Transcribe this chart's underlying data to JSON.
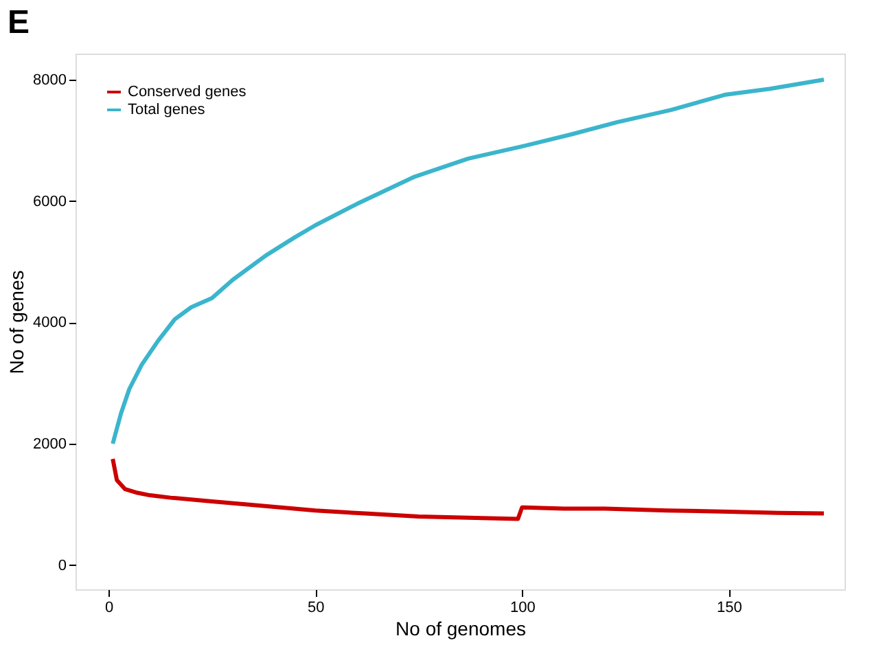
{
  "chart_data": {
    "type": "line",
    "title": "E",
    "xlabel": "No of genomes",
    "ylabel": "No  of genes",
    "xlim": [
      -8,
      178
    ],
    "xticks": [
      0,
      50,
      100,
      150
    ],
    "ylim": [
      -400,
      8430
    ],
    "yticks": [
      0,
      2000,
      4000,
      6000,
      8000
    ],
    "grid": false,
    "legend": "top left",
    "marker": "none",
    "line_style": "solid",
    "series": [
      {
        "name": "Conserved genes",
        "color": "#cc0000",
        "x": [
          1,
          2,
          4,
          7,
          10,
          15,
          25,
          35,
          50,
          62,
          75,
          87,
          99,
          100,
          110,
          120,
          135,
          150,
          162,
          173
        ],
        "values": [
          1750,
          1400,
          1250,
          1190,
          1150,
          1110,
          1050,
          990,
          900,
          850,
          800,
          780,
          760,
          950,
          930,
          930,
          900,
          880,
          860,
          850
        ]
      },
      {
        "name": "Total genes",
        "color": "#3bb5cc",
        "x": [
          1,
          3,
          5,
          8,
          12,
          16,
          20,
          25,
          30,
          38,
          45,
          50,
          60,
          74,
          87,
          100,
          112,
          123,
          136,
          149,
          160,
          173
        ],
        "values": [
          2000,
          2500,
          2900,
          3300,
          3700,
          4050,
          4250,
          4400,
          4700,
          5100,
          5400,
          5600,
          5950,
          6400,
          6700,
          6900,
          7100,
          7300,
          7500,
          7750,
          7850,
          8000
        ]
      }
    ]
  }
}
